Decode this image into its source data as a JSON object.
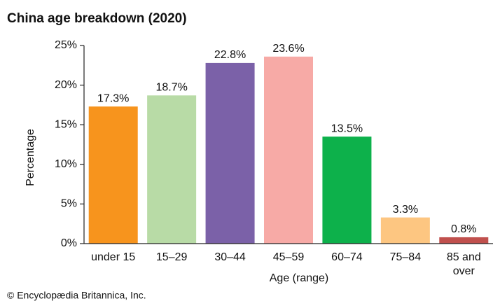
{
  "chart_data": {
    "type": "bar",
    "title": "China age breakdown (2020)",
    "categories": [
      "under 15",
      "15–29",
      "30–44",
      "45–59",
      "60–74",
      "75–84",
      "85 and over"
    ],
    "values": [
      17.3,
      18.7,
      22.8,
      23.6,
      13.5,
      3.3,
      0.8
    ],
    "value_labels": [
      "17.3%",
      "18.7%",
      "22.8%",
      "23.6%",
      "13.5%",
      "3.3%",
      "0.8%"
    ],
    "colors": [
      "#f7941d",
      "#b8dba6",
      "#7b61a8",
      "#f7aaa6",
      "#0db14b",
      "#fdc681",
      "#c0504d"
    ],
    "ylim": [
      0,
      25
    ],
    "yticks": [
      {
        "value": 0,
        "label": "0%"
      },
      {
        "value": 5,
        "label": "5%"
      },
      {
        "value": 10,
        "label": "10%"
      },
      {
        "value": 15,
        "label": "15%"
      },
      {
        "value": 20,
        "label": "20%"
      },
      {
        "value": 25,
        "label": "25%"
      }
    ],
    "y_label": "Percentage",
    "x_label": "Age (range)",
    "source": "© Encyclopædia Britannica, Inc."
  }
}
